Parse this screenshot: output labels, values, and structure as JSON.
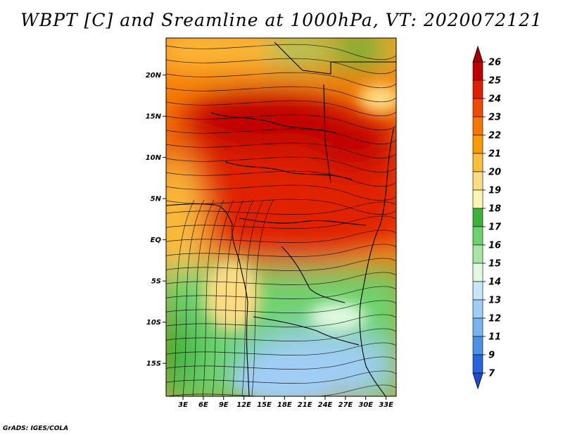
{
  "title": "WBPT [C] and Sreamline at 1000hPa, VT: 2020072121",
  "credit": "GrADS: IGES/COLA",
  "map": {
    "lat_labels": [
      "20N",
      "15N",
      "10N",
      "5N",
      "EQ",
      "5S",
      "10S",
      "15S"
    ],
    "lat_values": [
      20,
      15,
      10,
      5,
      0,
      -5,
      -10,
      -15
    ],
    "lon_labels": [
      "3E",
      "6E",
      "9E",
      "12E",
      "15E",
      "18E",
      "21E",
      "24E",
      "27E",
      "30E",
      "33E"
    ],
    "lon_values": [
      3,
      6,
      9,
      12,
      15,
      18,
      21,
      24,
      27,
      30,
      33
    ],
    "lat_range": [
      -19,
      24.5
    ],
    "lon_range": [
      0.5,
      34.5
    ]
  },
  "colorbar": {
    "labels": [
      "26",
      "25",
      "24",
      "23",
      "22",
      "21",
      "20",
      "19",
      "18",
      "17",
      "16",
      "15",
      "14",
      "13",
      "12",
      "11",
      "9",
      "7"
    ],
    "colors": [
      "#a00000",
      "#c00000",
      "#e02000",
      "#f04a00",
      "#f77800",
      "#fb9b00",
      "#fbbd3c",
      "#fbdc82",
      "#fbf5b4",
      "#3cb43c",
      "#6ed26e",
      "#a5e6a5",
      "#e1fae1",
      "#c8e6fa",
      "#a0cdf5",
      "#78b4f0",
      "#4b91e6",
      "#2864dc",
      "#1e4bd2"
    ]
  }
}
